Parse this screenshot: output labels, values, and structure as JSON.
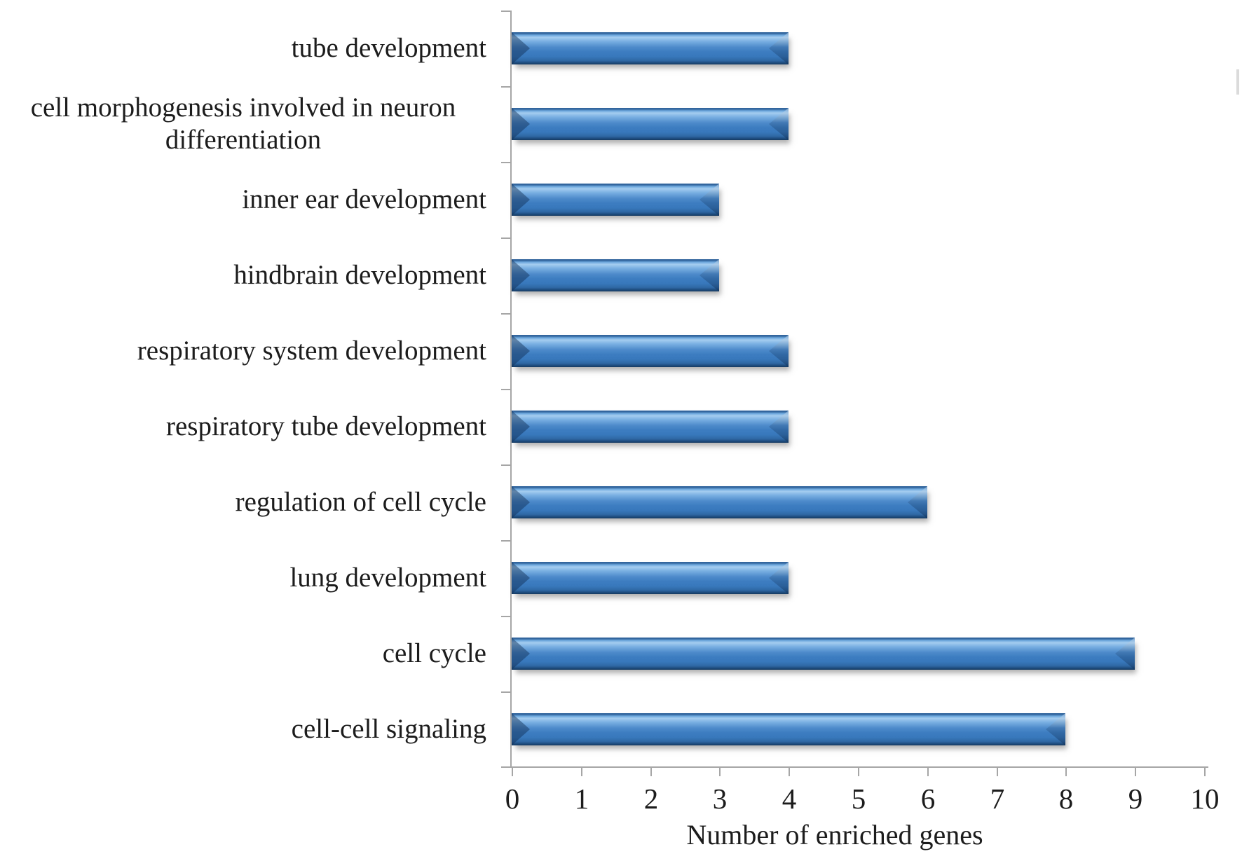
{
  "chart_data": {
    "type": "bar",
    "orientation": "horizontal",
    "title": "",
    "xlabel": "Number of enriched genes",
    "ylabel": "",
    "categories": [
      "tube development",
      "cell morphogenesis involved in neuron differentiation",
      "inner ear development",
      "hindbrain development",
      "respiratory system development",
      "respiratory tube development",
      "regulation of cell cycle",
      "lung development",
      "cell cycle",
      "cell-cell signaling"
    ],
    "values": [
      4,
      4,
      3,
      3,
      4,
      4,
      6,
      4,
      9,
      8
    ],
    "xlim": [
      0,
      10
    ],
    "xticks": [
      "0",
      "1",
      "2",
      "3",
      "4",
      "5",
      "6",
      "7",
      "8",
      "9",
      "10"
    ],
    "grid": false,
    "legend": "none",
    "colors": {
      "bar_light": "#a5cdf0",
      "bar_mid": "#3d7dc1",
      "bar_dark": "#163a61",
      "axis": "#a6a6a6",
      "text": "#1c1c1c"
    }
  }
}
